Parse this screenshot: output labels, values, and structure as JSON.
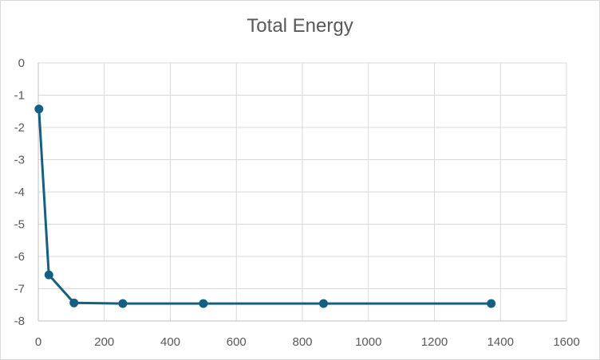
{
  "chart_data": {
    "type": "line",
    "title": "Total Energy",
    "xlabel": "",
    "ylabel": "",
    "xlim": [
      0,
      1600
    ],
    "ylim": [
      -8,
      0
    ],
    "x_ticks": [
      "0",
      "200",
      "400",
      "600",
      "800",
      "1000",
      "1200",
      "1400",
      "1600"
    ],
    "y_ticks": [
      "0",
      "-1",
      "-2",
      "-3",
      "-4",
      "-5",
      "-6",
      "-7",
      "-8"
    ],
    "grid": true,
    "legend": "none",
    "series": [
      {
        "color": "#156082",
        "x": [
          2,
          32,
          108,
          256,
          500,
          864,
          1372
        ],
        "y": [
          -1.43,
          -6.57,
          -7.44,
          -7.46,
          -7.46,
          -7.46,
          -7.46
        ]
      }
    ]
  }
}
